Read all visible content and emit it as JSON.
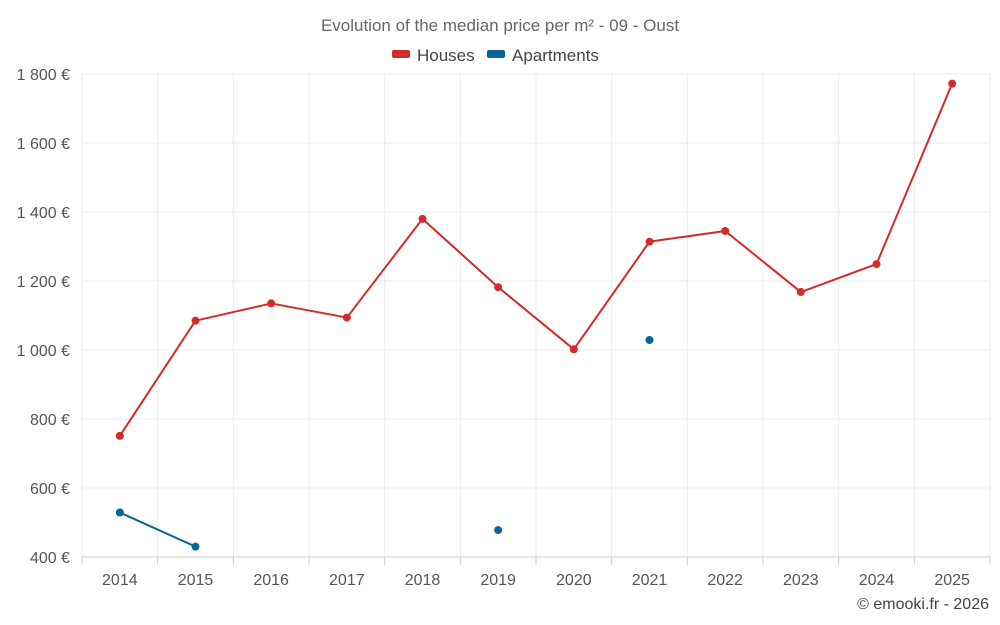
{
  "chart_data": {
    "type": "line",
    "title": "Evolution of the median price per m² - 09 - Oust",
    "categories": [
      "2014",
      "2015",
      "2016",
      "2017",
      "2018",
      "2019",
      "2020",
      "2021",
      "2022",
      "2023",
      "2024",
      "2025"
    ],
    "y_ticks": [
      "400 €",
      "600 €",
      "800 €",
      "1 000 €",
      "1 200 €",
      "1 400 €",
      "1 600 €",
      "1 800 €"
    ],
    "ylim": [
      400,
      1800
    ],
    "series": [
      {
        "name": "Houses",
        "color": "#d42a2a",
        "values": [
          751,
          1085,
          1135,
          1094,
          1380,
          1182,
          1002,
          1314,
          1345,
          1168,
          1249,
          1772
        ]
      },
      {
        "name": "Apartments",
        "color": "#046596",
        "values": [
          529,
          430,
          null,
          null,
          null,
          478,
          null,
          1029,
          null,
          null,
          null,
          null
        ]
      }
    ],
    "legend_position": "top-center",
    "credit": "© emooki.fr - 2026"
  }
}
